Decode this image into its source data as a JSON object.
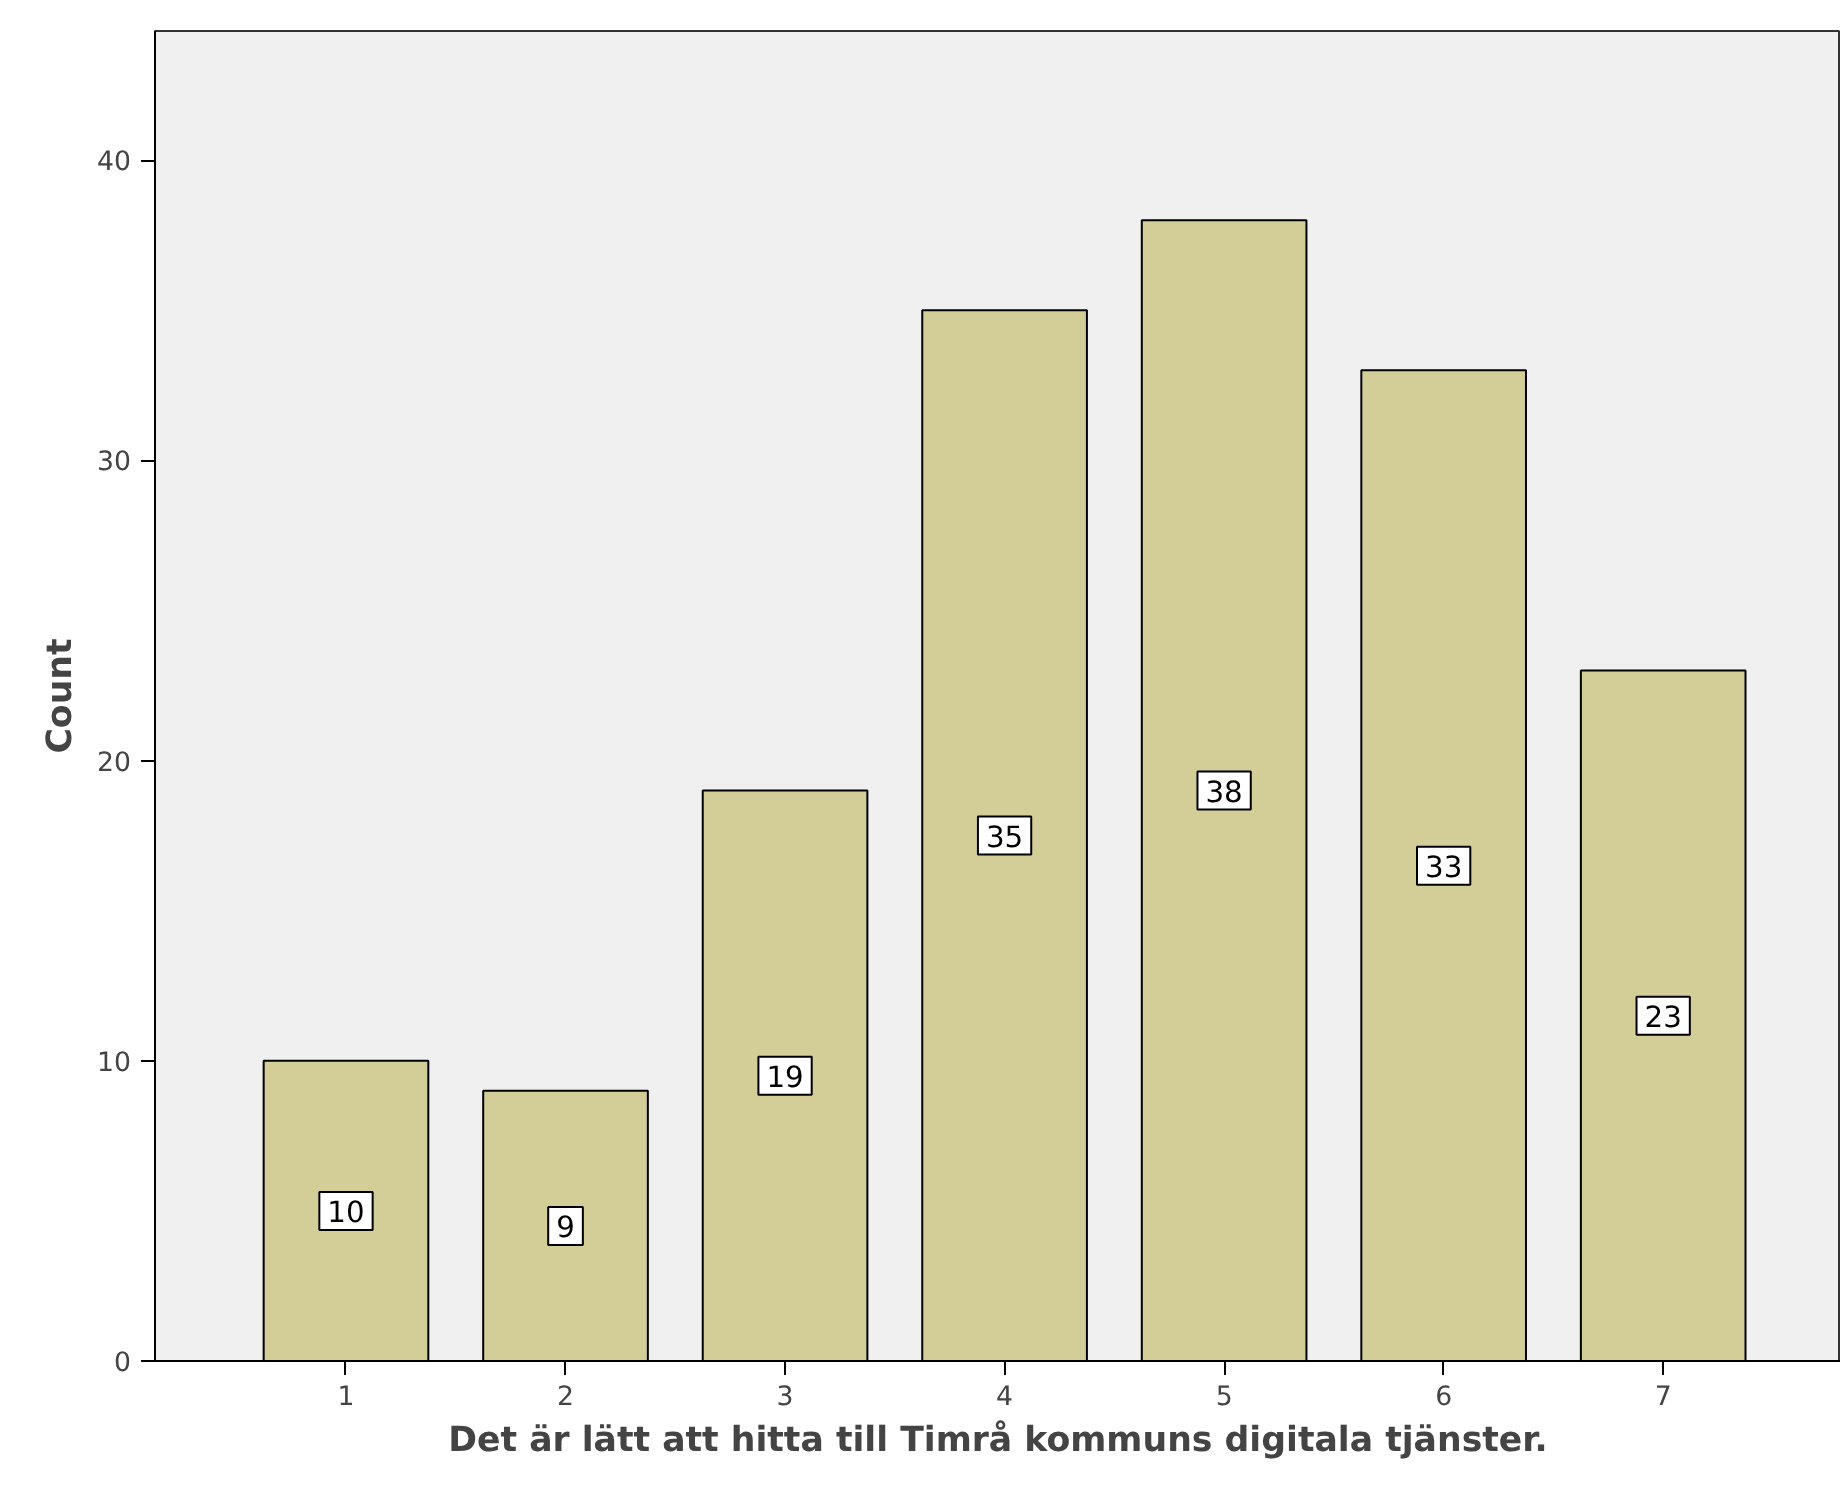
{
  "chart_data": {
    "type": "bar",
    "xlabel": "Det är lätt att hitta till Timrå kommuns digitala tjänster.",
    "ylabel": "Count",
    "categories": [
      "1",
      "2",
      "3",
      "4",
      "5",
      "6",
      "7"
    ],
    "values": [
      10,
      9,
      19,
      35,
      38,
      33,
      23
    ],
    "color": "#d3ce98",
    "data_labels": true,
    "ylim": [
      0,
      44.3
    ],
    "yticks": [
      0,
      10,
      20,
      30,
      40
    ],
    "grid": false
  }
}
